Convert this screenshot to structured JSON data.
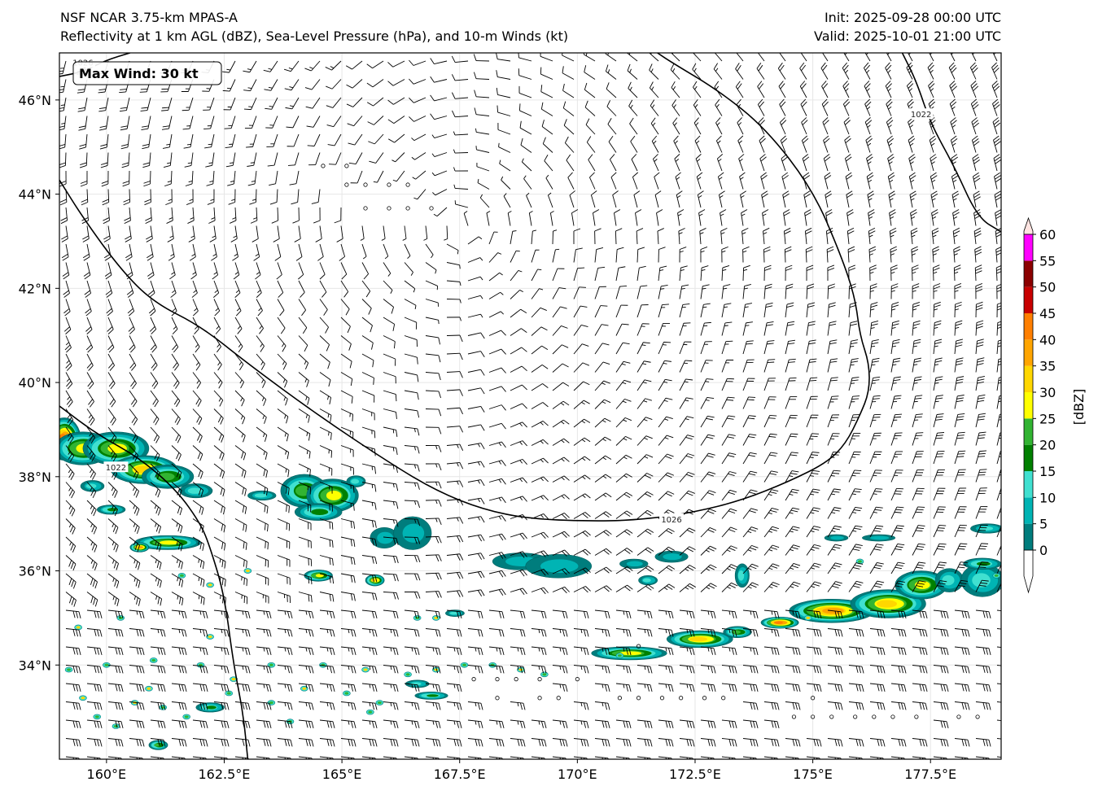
{
  "header": {
    "model": "NSF NCAR 3.75-km MPAS-A",
    "fields": "Reflectivity at 1 km AGL (dBZ), Sea-Level Pressure (hPa), and 10-m Winds (kt)",
    "init": "Init: 2025-09-28 00:00 UTC",
    "valid": "Valid: 2025-10-01 21:00 UTC"
  },
  "map": {
    "lon_range": [
      159.0,
      179.0
    ],
    "lat_range": [
      32.0,
      47.0
    ],
    "lon_ticks": [
      {
        "value": 160.0,
        "label": "160°E"
      },
      {
        "value": 162.5,
        "label": "162.5°E"
      },
      {
        "value": 165.0,
        "label": "165°E"
      },
      {
        "value": 167.5,
        "label": "167.5°E"
      },
      {
        "value": 170.0,
        "label": "170°E"
      },
      {
        "value": 172.5,
        "label": "172.5°E"
      },
      {
        "value": 175.0,
        "label": "175°E"
      },
      {
        "value": 177.5,
        "label": "177.5°E"
      }
    ],
    "lat_ticks": [
      {
        "value": 34,
        "label": "34°N"
      },
      {
        "value": 36,
        "label": "36°N"
      },
      {
        "value": 38,
        "label": "38°N"
      },
      {
        "value": 40,
        "label": "40°N"
      },
      {
        "value": 42,
        "label": "42°N"
      },
      {
        "value": 44,
        "label": "44°N"
      },
      {
        "value": 46,
        "label": "46°N"
      }
    ],
    "max_wind_label": "Max Wind: 30 kt",
    "high_center": {
      "lon": 167.5,
      "lat": 43.3
    },
    "isobars": [
      {
        "label": "1026",
        "label_at": {
          "lon": 172.0,
          "lat": 37.1
        },
        "points": [
          [
            159.0,
            44.3
          ],
          [
            159.5,
            43.5
          ],
          [
            160.3,
            42.4
          ],
          [
            161.0,
            41.7
          ],
          [
            162.0,
            41.2
          ],
          [
            163.0,
            40.4
          ],
          [
            164.5,
            39.3
          ],
          [
            166.0,
            38.3
          ],
          [
            167.0,
            37.7
          ],
          [
            168.0,
            37.3
          ],
          [
            169.0,
            37.1
          ],
          [
            170.5,
            37.05
          ],
          [
            171.5,
            37.1
          ],
          [
            172.5,
            37.25
          ],
          [
            173.5,
            37.5
          ],
          [
            174.5,
            37.9
          ],
          [
            175.3,
            38.3
          ],
          [
            175.7,
            38.7
          ],
          [
            176.0,
            39.3
          ],
          [
            176.2,
            39.8
          ],
          [
            176.2,
            40.4
          ],
          [
            176.0,
            41.0
          ],
          [
            175.9,
            41.8
          ],
          [
            175.6,
            42.7
          ],
          [
            175.0,
            44.1
          ],
          [
            174.0,
            45.4
          ],
          [
            173.0,
            46.2
          ],
          [
            172.0,
            46.8
          ],
          [
            171.7,
            47.0
          ]
        ]
      },
      {
        "label": "1026",
        "label_at": {
          "lon": 159.5,
          "lat": 46.8
        },
        "points": [
          [
            159.0,
            46.5
          ],
          [
            159.5,
            46.6
          ],
          [
            160.0,
            46.85
          ],
          [
            160.5,
            47.0
          ]
        ]
      },
      {
        "label": "1022",
        "label_at": {
          "lon": 177.3,
          "lat": 45.7
        },
        "points": [
          [
            176.9,
            47.0
          ],
          [
            177.2,
            46.4
          ],
          [
            177.5,
            45.5
          ],
          [
            178.0,
            44.6
          ],
          [
            178.5,
            43.5
          ],
          [
            179.0,
            43.2
          ]
        ]
      },
      {
        "label": "1022",
        "label_at": {
          "lon": 160.2,
          "lat": 38.2
        },
        "points": [
          [
            159.0,
            39.5
          ],
          [
            159.8,
            38.9
          ],
          [
            160.7,
            38.4
          ],
          [
            161.5,
            37.7
          ],
          [
            162.0,
            37.0
          ],
          [
            162.2,
            36.5
          ],
          [
            162.5,
            35.5
          ],
          [
            162.7,
            34.0
          ],
          [
            162.9,
            33.0
          ],
          [
            163.0,
            32.0
          ]
        ]
      }
    ],
    "calm_points": [
      [
        164.6,
        44.6
      ],
      [
        165.1,
        44.6
      ],
      [
        165.1,
        44.2
      ],
      [
        165.5,
        44.2
      ],
      [
        166.0,
        44.2
      ],
      [
        166.4,
        44.2
      ],
      [
        165.5,
        43.7
      ],
      [
        166.0,
        43.7
      ],
      [
        166.4,
        43.7
      ],
      [
        166.9,
        43.7
      ],
      [
        167.8,
        33.7
      ],
      [
        168.3,
        33.7
      ],
      [
        168.7,
        33.7
      ],
      [
        169.2,
        33.7
      ],
      [
        170.0,
        33.7
      ],
      [
        168.3,
        33.3
      ],
      [
        169.2,
        33.3
      ],
      [
        169.6,
        33.3
      ],
      [
        170.9,
        33.3
      ],
      [
        171.3,
        33.3
      ],
      [
        171.8,
        33.3
      ],
      [
        172.2,
        33.3
      ],
      [
        172.7,
        33.3
      ],
      [
        173.1,
        33.3
      ],
      [
        175.0,
        33.3
      ],
      [
        174.6,
        32.9
      ],
      [
        175.0,
        32.9
      ],
      [
        175.4,
        32.9
      ],
      [
        175.9,
        32.9
      ],
      [
        176.3,
        32.9
      ],
      [
        176.7,
        32.9
      ],
      [
        177.2,
        32.9
      ],
      [
        178.1,
        32.9
      ],
      [
        178.5,
        32.9
      ],
      [
        171.3,
        34.4
      ]
    ],
    "echo_regions": [
      {
        "lon": 159.1,
        "lat": 38.8,
        "rx": 0.35,
        "ry": 0.45,
        "dbz": 40
      },
      {
        "lon": 159.5,
        "lat": 38.6,
        "rx": 0.6,
        "ry": 0.35,
        "dbz": 25
      },
      {
        "lon": 160.2,
        "lat": 38.6,
        "rx": 0.7,
        "ry": 0.35,
        "dbz": 25
      },
      {
        "lon": 160.8,
        "lat": 38.15,
        "rx": 0.7,
        "ry": 0.3,
        "dbz": 30
      },
      {
        "lon": 161.3,
        "lat": 38.0,
        "rx": 0.55,
        "ry": 0.25,
        "dbz": 20
      },
      {
        "lon": 161.9,
        "lat": 37.7,
        "rx": 0.35,
        "ry": 0.15,
        "dbz": 10
      },
      {
        "lon": 159.7,
        "lat": 37.8,
        "rx": 0.25,
        "ry": 0.12,
        "dbz": 10
      },
      {
        "lon": 160.1,
        "lat": 37.3,
        "rx": 0.3,
        "ry": 0.1,
        "dbz": 15
      },
      {
        "lon": 161.3,
        "lat": 36.6,
        "rx": 0.7,
        "ry": 0.15,
        "dbz": 25
      },
      {
        "lon": 160.7,
        "lat": 36.5,
        "rx": 0.2,
        "ry": 0.1,
        "dbz": 35
      },
      {
        "lon": 164.2,
        "lat": 37.7,
        "rx": 0.5,
        "ry": 0.35,
        "dbz": 20
      },
      {
        "lon": 164.8,
        "lat": 37.6,
        "rx": 0.55,
        "ry": 0.35,
        "dbz": 25
      },
      {
        "lon": 164.5,
        "lat": 37.25,
        "rx": 0.5,
        "ry": 0.18,
        "dbz": 15
      },
      {
        "lon": 165.3,
        "lat": 37.9,
        "rx": 0.2,
        "ry": 0.12,
        "dbz": 10
      },
      {
        "lon": 163.3,
        "lat": 37.6,
        "rx": 0.3,
        "ry": 0.1,
        "dbz": 10
      },
      {
        "lon": 165.9,
        "lat": 36.7,
        "rx": 0.3,
        "ry": 0.22,
        "dbz": 5
      },
      {
        "lon": 166.5,
        "lat": 36.8,
        "rx": 0.4,
        "ry": 0.35,
        "dbz": 5
      },
      {
        "lon": 168.8,
        "lat": 36.2,
        "rx": 0.6,
        "ry": 0.18,
        "dbz": 5
      },
      {
        "lon": 169.6,
        "lat": 36.1,
        "rx": 0.7,
        "ry": 0.25,
        "dbz": 5
      },
      {
        "lon": 171.2,
        "lat": 36.15,
        "rx": 0.3,
        "ry": 0.1,
        "dbz": 5
      },
      {
        "lon": 172.0,
        "lat": 36.3,
        "rx": 0.35,
        "ry": 0.12,
        "dbz": 5
      },
      {
        "lon": 171.5,
        "lat": 35.8,
        "rx": 0.2,
        "ry": 0.1,
        "dbz": 10
      },
      {
        "lon": 173.5,
        "lat": 35.9,
        "rx": 0.15,
        "ry": 0.25,
        "dbz": 10
      },
      {
        "lon": 164.5,
        "lat": 35.9,
        "rx": 0.3,
        "ry": 0.12,
        "dbz": 25
      },
      {
        "lon": 165.7,
        "lat": 35.8,
        "rx": 0.2,
        "ry": 0.12,
        "dbz": 30
      },
      {
        "lon": 167.4,
        "lat": 35.1,
        "rx": 0.2,
        "ry": 0.07,
        "dbz": 10
      },
      {
        "lon": 171.1,
        "lat": 34.25,
        "rx": 0.8,
        "ry": 0.14,
        "dbz": 25
      },
      {
        "lon": 172.6,
        "lat": 34.55,
        "rx": 0.7,
        "ry": 0.18,
        "dbz": 30
      },
      {
        "lon": 173.4,
        "lat": 34.7,
        "rx": 0.3,
        "ry": 0.12,
        "dbz": 20
      },
      {
        "lon": 174.3,
        "lat": 34.9,
        "rx": 0.4,
        "ry": 0.12,
        "dbz": 40
      },
      {
        "lon": 175.4,
        "lat": 35.15,
        "rx": 0.9,
        "ry": 0.25,
        "dbz": 35
      },
      {
        "lon": 176.6,
        "lat": 35.3,
        "rx": 0.8,
        "ry": 0.3,
        "dbz": 30
      },
      {
        "lon": 177.3,
        "lat": 35.7,
        "rx": 0.55,
        "ry": 0.3,
        "dbz": 25
      },
      {
        "lon": 177.9,
        "lat": 35.8,
        "rx": 0.3,
        "ry": 0.25,
        "dbz": 10
      },
      {
        "lon": 178.6,
        "lat": 35.8,
        "rx": 0.45,
        "ry": 0.35,
        "dbz": 10
      },
      {
        "lon": 178.6,
        "lat": 36.15,
        "rx": 0.4,
        "ry": 0.12,
        "dbz": 15
      },
      {
        "lon": 178.7,
        "lat": 36.9,
        "rx": 0.35,
        "ry": 0.1,
        "dbz": 10
      },
      {
        "lon": 176.4,
        "lat": 36.7,
        "rx": 0.35,
        "ry": 0.07,
        "dbz": 5
      },
      {
        "lon": 175.5,
        "lat": 36.7,
        "rx": 0.25,
        "ry": 0.07,
        "dbz": 5
      },
      {
        "lon": 166.9,
        "lat": 33.35,
        "rx": 0.35,
        "ry": 0.08,
        "dbz": 15
      },
      {
        "lon": 166.6,
        "lat": 33.6,
        "rx": 0.25,
        "ry": 0.08,
        "dbz": 10
      },
      {
        "lon": 162.2,
        "lat": 33.1,
        "rx": 0.3,
        "ry": 0.1,
        "dbz": 15
      },
      {
        "lon": 161.1,
        "lat": 32.3,
        "rx": 0.2,
        "ry": 0.1,
        "dbz": 20
      }
    ],
    "scatter_echo_regions": [
      [
        159.5,
        33.3
      ],
      [
        159.8,
        32.9
      ],
      [
        160.2,
        32.7
      ],
      [
        160.6,
        33.2
      ],
      [
        160.0,
        34.0
      ],
      [
        159.2,
        33.9
      ],
      [
        160.9,
        33.5
      ],
      [
        161.2,
        33.1
      ],
      [
        161.7,
        32.9
      ],
      [
        162.7,
        33.7
      ],
      [
        163.5,
        33.2
      ],
      [
        163.9,
        32.8
      ],
      [
        164.2,
        33.5
      ],
      [
        164.6,
        34.0
      ],
      [
        165.1,
        33.4
      ],
      [
        165.5,
        33.9
      ],
      [
        165.8,
        33.2
      ],
      [
        166.4,
        33.8
      ],
      [
        167.0,
        33.9
      ],
      [
        167.6,
        34.0
      ],
      [
        168.2,
        34.0
      ],
      [
        168.8,
        33.9
      ],
      [
        169.3,
        33.8
      ],
      [
        162.0,
        34.0
      ],
      [
        162.2,
        35.7
      ],
      [
        163.5,
        34.0
      ],
      [
        162.6,
        33.4
      ],
      [
        159.4,
        34.8
      ],
      [
        160.3,
        35.0
      ],
      [
        161.0,
        34.1
      ],
      [
        163.0,
        36.0
      ],
      [
        165.6,
        33.0
      ],
      [
        166.6,
        35.0
      ],
      [
        167.0,
        35.0
      ],
      [
        170.9,
        34.2
      ],
      [
        178.9,
        35.9
      ],
      [
        174.9,
        35.0
      ],
      [
        176.0,
        36.2
      ],
      [
        161.6,
        35.9
      ],
      [
        162.2,
        34.6
      ]
    ],
    "colorbar": {
      "unit_label": "[dBZ]",
      "levels": [
        {
          "value": 0,
          "label": "0",
          "color": "#007d7d"
        },
        {
          "value": 5,
          "label": "5",
          "color": "#00b4b4"
        },
        {
          "value": 10,
          "label": "10",
          "color": "#40e0d0"
        },
        {
          "value": 15,
          "label": "15",
          "color": "#008000"
        },
        {
          "value": 20,
          "label": "20",
          "color": "#32b432"
        },
        {
          "value": 25,
          "label": "25",
          "color": "#ffff00"
        },
        {
          "value": 30,
          "label": "30",
          "color": "#ffd700"
        },
        {
          "value": 35,
          "label": "35",
          "color": "#ffa500"
        },
        {
          "value": 40,
          "label": "40",
          "color": "#ff7f00"
        },
        {
          "value": 45,
          "label": "45",
          "color": "#c80000"
        },
        {
          "value": 50,
          "label": "50",
          "color": "#8b0000"
        },
        {
          "value": 55,
          "label": "55",
          "color": "#ff00ff"
        },
        {
          "value": 60,
          "label": "60",
          "color": "#ffe4e1"
        }
      ],
      "under_color": "#ffffff",
      "over_color": "#ffe4e1"
    }
  }
}
